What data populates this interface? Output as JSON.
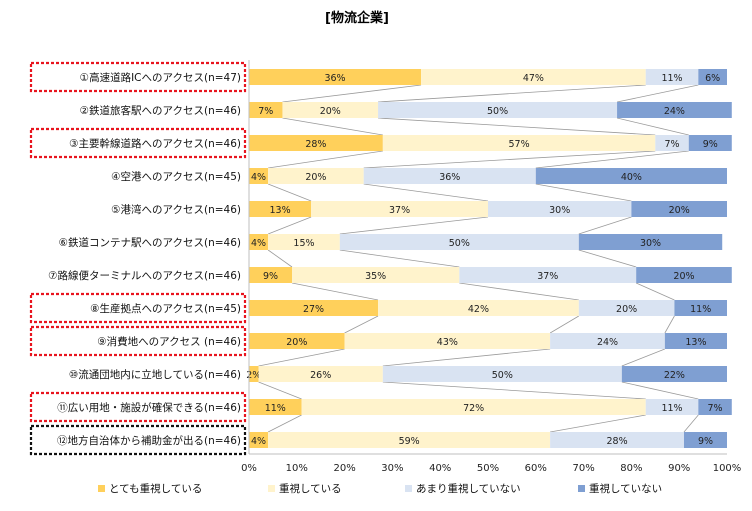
{
  "chart_data": {
    "type": "bar",
    "orientation": "horizontal",
    "stacked": true,
    "percent": true,
    "title": "[物流企業]",
    "categories": [
      "①高速道路ICへのアクセス(n=47)",
      "②鉄道旅客駅へのアクセス(n=46)",
      "③主要幹線道路へのアクセス(n=46)",
      "④空港へのアクセス(n=45)",
      "⑤港湾へのアクセス(n=46)",
      "⑥鉄道コンテナ駅へのアクセス(n=46)",
      "⑦路線便ターミナルへのアクセス(n=46)",
      "⑧生産拠点へのアクセス(n=45)",
      "⑨消費地へのアクセス (n=46)",
      "⑩流通団地内に立地している(n=46)",
      "⑪広い用地・施設が確保できる(n=46)",
      "⑫地方自治体から補助金が出る(n=46)"
    ],
    "series": [
      {
        "name": "とても重視している",
        "color": "#FFD05B",
        "values": [
          36,
          7,
          28,
          4,
          13,
          4,
          9,
          27,
          20,
          2,
          11,
          4
        ]
      },
      {
        "name": "重視している",
        "color": "#FFF3CC",
        "values": [
          47,
          20,
          57,
          20,
          37,
          15,
          35,
          42,
          43,
          26,
          72,
          59
        ]
      },
      {
        "name": "あまり重視していない",
        "color": "#D9E3F2",
        "values": [
          11,
          50,
          7,
          36,
          30,
          50,
          37,
          20,
          24,
          50,
          11,
          28
        ]
      },
      {
        "name": "重視していない",
        "color": "#7F9FD2",
        "values": [
          6,
          24,
          9,
          40,
          20,
          30,
          20,
          11,
          13,
          22,
          7,
          9
        ]
      }
    ],
    "xlim": [
      0,
      100
    ],
    "xticks": [
      "0%",
      "10%",
      "20%",
      "30%",
      "40%",
      "50%",
      "60%",
      "70%",
      "80%",
      "90%",
      "100%"
    ],
    "legend_position": "bottom",
    "highlighted_categories_red": [
      0,
      2,
      7,
      8,
      10
    ],
    "highlighted_categories_black": [
      11
    ]
  }
}
